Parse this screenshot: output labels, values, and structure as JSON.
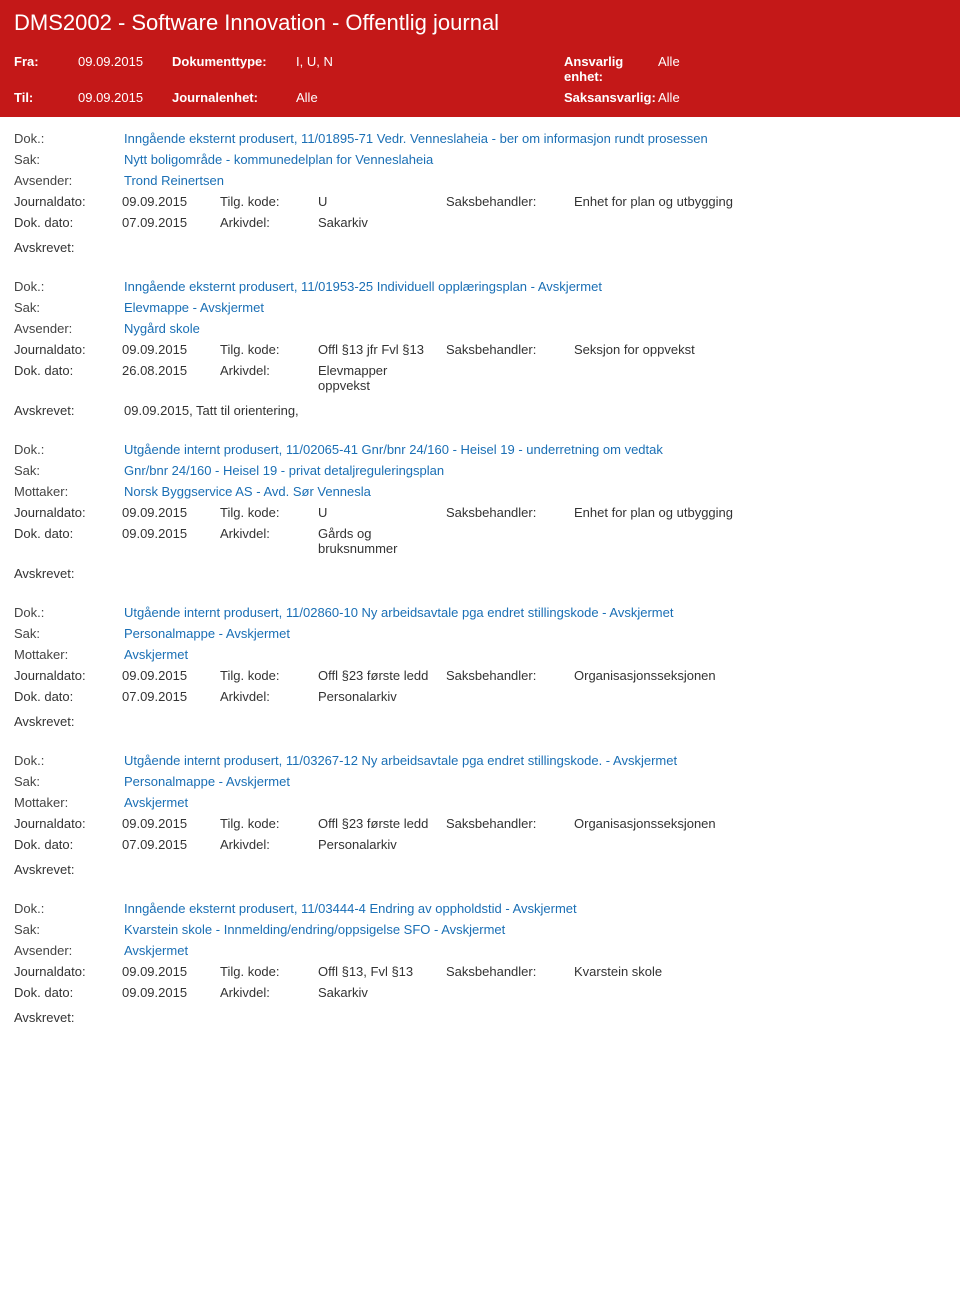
{
  "header": {
    "title": "DMS2002 - Software Innovation - Offentlig journal",
    "fra_label": "Fra:",
    "fra_value": "09.09.2015",
    "til_label": "Til:",
    "til_value": "09.09.2015",
    "doktype_label": "Dokumenttype:",
    "doktype_value": "I, U, N",
    "journalenhet_label": "Journalenhet:",
    "journalenhet_value": "Alle",
    "ansvarlig_label": "Ansvarlig enhet:",
    "ansvarlig_value": "Alle",
    "saksansvarlig_label": "Saksansvarlig:",
    "saksansvarlig_value": "Alle"
  },
  "labels": {
    "dok": "Dok.:",
    "sak": "Sak:",
    "avsender": "Avsender:",
    "mottaker": "Mottaker:",
    "journaldato": "Journaldato:",
    "dok_dato": "Dok. dato:",
    "tilg_kode": "Tilg. kode:",
    "arkivdel": "Arkivdel:",
    "saksbehandler": "Saksbehandler:",
    "avskrevet": "Avskrevet:"
  },
  "records": [
    {
      "dok": "Inngående eksternt produsert, 11/01895-71 Vedr. Venneslaheia - ber om informasjon rundt prosessen",
      "sak": "Nytt boligområde - kommunedelplan for Venneslaheia",
      "party_label_key": "avsender",
      "party": "Trond Reinertsen",
      "journaldato": "09.09.2015",
      "tilg_kode": "U",
      "saksbehandler": "Enhet for plan og utbygging",
      "dok_dato": "07.09.2015",
      "arkivdel": "Sakarkiv",
      "avskrevet": ""
    },
    {
      "dok": "Inngående eksternt produsert, 11/01953-25 Individuell opplæringsplan - Avskjermet",
      "sak": "Elevmappe - Avskjermet",
      "party_label_key": "avsender",
      "party": "Nygård skole",
      "journaldato": "09.09.2015",
      "tilg_kode": "Offl §13 jfr Fvl §13",
      "saksbehandler": "Seksjon for oppvekst",
      "dok_dato": "26.08.2015",
      "arkivdel": "Elevmapper oppvekst",
      "avskrevet": "09.09.2015, Tatt til orientering,"
    },
    {
      "dok": "Utgående internt produsert, 11/02065-41 Gnr/bnr 24/160 - Heisel 19 - underretning om vedtak",
      "sak": "Gnr/bnr 24/160 - Heisel 19 - privat detaljreguleringsplan",
      "party_label_key": "mottaker",
      "party": "Norsk Byggservice AS - Avd. Sør Vennesla",
      "journaldato": "09.09.2015",
      "tilg_kode": "U",
      "saksbehandler": "Enhet for plan og utbygging",
      "dok_dato": "09.09.2015",
      "arkivdel": "Gårds og bruksnummer",
      "avskrevet": ""
    },
    {
      "dok": "Utgående internt produsert, 11/02860-10 Ny arbeidsavtale pga endret stillingskode - Avskjermet",
      "sak": "Personalmappe - Avskjermet",
      "party_label_key": "mottaker",
      "party": "Avskjermet",
      "journaldato": "09.09.2015",
      "tilg_kode": "Offl §23 første ledd",
      "saksbehandler": "Organisasjonsseksjonen",
      "dok_dato": "07.09.2015",
      "arkivdel": "Personalarkiv",
      "avskrevet": ""
    },
    {
      "dok": "Utgående internt produsert, 11/03267-12 Ny arbeidsavtale pga endret stillingskode. - Avskjermet",
      "sak": "Personalmappe - Avskjermet",
      "party_label_key": "mottaker",
      "party": "Avskjermet",
      "journaldato": "09.09.2015",
      "tilg_kode": "Offl §23 første ledd",
      "saksbehandler": "Organisasjonsseksjonen",
      "dok_dato": "07.09.2015",
      "arkivdel": "Personalarkiv",
      "avskrevet": ""
    },
    {
      "dok": "Inngående eksternt produsert, 11/03444-4 Endring av oppholdstid - Avskjermet",
      "sak": "Kvarstein skole - Innmelding/endring/oppsigelse SFO - Avskjermet",
      "party_label_key": "avsender",
      "party": "Avskjermet",
      "journaldato": "09.09.2015",
      "tilg_kode": "Offl §13, Fvl §13",
      "saksbehandler": "Kvarstein skole",
      "dok_dato": "09.09.2015",
      "arkivdel": "Sakarkiv",
      "avskrevet": ""
    }
  ]
}
